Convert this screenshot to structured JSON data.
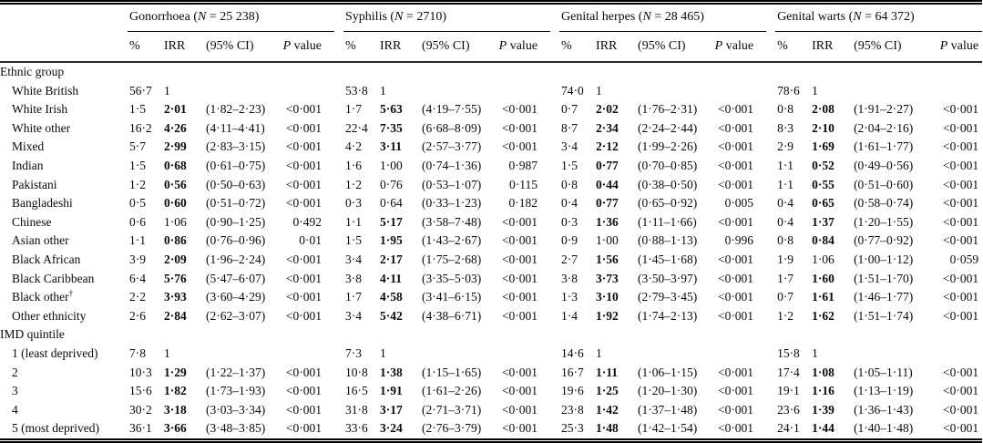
{
  "table": {
    "n_symbol": "N",
    "groups": [
      {
        "name": "Gonorrhoea",
        "n": "25 238"
      },
      {
        "name": "Syphilis",
        "n": "2710"
      },
      {
        "name": "Genital herpes",
        "n": "28 465"
      },
      {
        "name": "Genital warts",
        "n": "64 372"
      }
    ],
    "subheaders": {
      "pct": "%",
      "irr": "IRR",
      "ci": "(95% CI)",
      "p_italic": "P",
      "p_rest": "value"
    },
    "sections": [
      {
        "header": "Ethnic group",
        "rows": [
          {
            "label": "White British",
            "cells": [
              {
                "pct": "56·7",
                "irr": "1",
                "bold": false,
                "ci": "",
                "p": ""
              },
              {
                "pct": "53·8",
                "irr": "1",
                "bold": false,
                "ci": "",
                "p": ""
              },
              {
                "pct": "74·0",
                "irr": "1",
                "bold": false,
                "ci": "",
                "p": ""
              },
              {
                "pct": "78·6",
                "irr": "1",
                "bold": false,
                "ci": "",
                "p": ""
              }
            ]
          },
          {
            "label": "White Irish",
            "cells": [
              {
                "pct": "1·5",
                "irr": "2·01",
                "bold": true,
                "ci": "(1·82–2·23)",
                "p": "<0·001"
              },
              {
                "pct": "1·7",
                "irr": "5·63",
                "bold": true,
                "ci": "(4·19–7·55)",
                "p": "<0·001"
              },
              {
                "pct": "0·7",
                "irr": "2·02",
                "bold": true,
                "ci": "(1·76–2·31)",
                "p": "<0·001"
              },
              {
                "pct": "0·8",
                "irr": "2·08",
                "bold": true,
                "ci": "(1·91–2·27)",
                "p": "<0·001"
              }
            ]
          },
          {
            "label": "White other",
            "cells": [
              {
                "pct": "16·2",
                "irr": "4·26",
                "bold": true,
                "ci": "(4·11–4·41)",
                "p": "<0·001"
              },
              {
                "pct": "22·4",
                "irr": "7·35",
                "bold": true,
                "ci": "(6·68–8·09)",
                "p": "<0·001"
              },
              {
                "pct": "8·7",
                "irr": "2·34",
                "bold": true,
                "ci": "(2·24–2·44)",
                "p": "<0·001"
              },
              {
                "pct": "8·3",
                "irr": "2·10",
                "bold": true,
                "ci": "(2·04–2·16)",
                "p": "<0·001"
              }
            ]
          },
          {
            "label": "Mixed",
            "cells": [
              {
                "pct": "5·7",
                "irr": "2·99",
                "bold": true,
                "ci": "(2·83–3·15)",
                "p": "<0·001"
              },
              {
                "pct": "4·2",
                "irr": "3·11",
                "bold": true,
                "ci": "(2·57–3·77)",
                "p": "<0·001"
              },
              {
                "pct": "3·4",
                "irr": "2·12",
                "bold": true,
                "ci": "(1·99–2·26)",
                "p": "<0·001"
              },
              {
                "pct": "2·9",
                "irr": "1·69",
                "bold": true,
                "ci": "(1·61–1·77)",
                "p": "<0·001"
              }
            ]
          },
          {
            "label": "Indian",
            "cells": [
              {
                "pct": "1·5",
                "irr": "0·68",
                "bold": true,
                "ci": "(0·61–0·75)",
                "p": "<0·001"
              },
              {
                "pct": "1·6",
                "irr": "1·00",
                "bold": false,
                "ci": "(0·74–1·36)",
                "p": "0·987"
              },
              {
                "pct": "1·5",
                "irr": "0·77",
                "bold": true,
                "ci": "(0·70–0·85)",
                "p": "<0·001"
              },
              {
                "pct": "1·1",
                "irr": "0·52",
                "bold": true,
                "ci": "(0·49–0·56)",
                "p": "<0·001"
              }
            ]
          },
          {
            "label": "Pakistani",
            "cells": [
              {
                "pct": "1·2",
                "irr": "0·56",
                "bold": true,
                "ci": "(0·50–0·63)",
                "p": "<0·001"
              },
              {
                "pct": "1·2",
                "irr": "0·76",
                "bold": false,
                "ci": "(0·53–1·07)",
                "p": "0·115"
              },
              {
                "pct": "0·8",
                "irr": "0·44",
                "bold": true,
                "ci": "(0·38–0·50)",
                "p": "<0·001"
              },
              {
                "pct": "1·1",
                "irr": "0·55",
                "bold": true,
                "ci": "(0·51–0·60)",
                "p": "<0·001"
              }
            ]
          },
          {
            "label": "Bangladeshi",
            "cells": [
              {
                "pct": "0·5",
                "irr": "0·60",
                "bold": true,
                "ci": "(0·51–0·72)",
                "p": "<0·001"
              },
              {
                "pct": "0·3",
                "irr": "0·64",
                "bold": false,
                "ci": "(0·33–1·23)",
                "p": "0·182"
              },
              {
                "pct": "0·4",
                "irr": "0·77",
                "bold": true,
                "ci": "(0·65–0·92)",
                "p": "0·005"
              },
              {
                "pct": "0·4",
                "irr": "0·65",
                "bold": true,
                "ci": "(0·58–0·74)",
                "p": "<0·001"
              }
            ]
          },
          {
            "label": "Chinese",
            "cells": [
              {
                "pct": "0·6",
                "irr": "1·06",
                "bold": false,
                "ci": "(0·90–1·25)",
                "p": "0·492"
              },
              {
                "pct": "1·1",
                "irr": "5·17",
                "bold": true,
                "ci": "(3·58–7·48)",
                "p": "<0·001"
              },
              {
                "pct": "0·3",
                "irr": "1·36",
                "bold": true,
                "ci": "(1·11–1·66)",
                "p": "<0·001"
              },
              {
                "pct": "0·4",
                "irr": "1·37",
                "bold": true,
                "ci": "(1·20–1·55)",
                "p": "<0·001"
              }
            ]
          },
          {
            "label": "Asian other",
            "cells": [
              {
                "pct": "1·1",
                "irr": "0·86",
                "bold": true,
                "ci": "(0·76–0·96)",
                "p": "0·01"
              },
              {
                "pct": "1·5",
                "irr": "1·95",
                "bold": true,
                "ci": "(1·43–2·67)",
                "p": "<0·001"
              },
              {
                "pct": "0·9",
                "irr": "1·00",
                "bold": false,
                "ci": "(0·88–1·13)",
                "p": "0·996"
              },
              {
                "pct": "0·8",
                "irr": "0·84",
                "bold": true,
                "ci": "(0·77–0·92)",
                "p": "<0·001"
              }
            ]
          },
          {
            "label": "Black African",
            "cells": [
              {
                "pct": "3·9",
                "irr": "2·09",
                "bold": true,
                "ci": "(1·96–2·24)",
                "p": "<0·001"
              },
              {
                "pct": "3·4",
                "irr": "2·17",
                "bold": true,
                "ci": "(1·75–2·68)",
                "p": "<0·001"
              },
              {
                "pct": "2·7",
                "irr": "1·56",
                "bold": true,
                "ci": "(1·45–1·68)",
                "p": "<0·001"
              },
              {
                "pct": "1·9",
                "irr": "1·06",
                "bold": false,
                "ci": "(1·00–1·12)",
                "p": "0·059"
              }
            ]
          },
          {
            "label": "Black Caribbean",
            "cells": [
              {
                "pct": "6·4",
                "irr": "5·76",
                "bold": true,
                "ci": "(5·47–6·07)",
                "p": "<0·001"
              },
              {
                "pct": "3·8",
                "irr": "4·11",
                "bold": true,
                "ci": "(3·35–5·03)",
                "p": "<0·001"
              },
              {
                "pct": "3·8",
                "irr": "3·73",
                "bold": true,
                "ci": "(3·50–3·97)",
                "p": "<0·001"
              },
              {
                "pct": "1·7",
                "irr": "1·60",
                "bold": true,
                "ci": "(1·51–1·70)",
                "p": "<0·001"
              }
            ]
          },
          {
            "label": "Black other",
            "sup": "†",
            "cells": [
              {
                "pct": "2·2",
                "irr": "3·93",
                "bold": true,
                "ci": "(3·60–4·29)",
                "p": "<0·001"
              },
              {
                "pct": "1·7",
                "irr": "4·58",
                "bold": true,
                "ci": "(3·41–6·15)",
                "p": "<0·001"
              },
              {
                "pct": "1·3",
                "irr": "3·10",
                "bold": true,
                "ci": "(2·79–3·45)",
                "p": "<0·001"
              },
              {
                "pct": "0·7",
                "irr": "1·61",
                "bold": true,
                "ci": "(1·46–1·77)",
                "p": "<0·001"
              }
            ]
          },
          {
            "label": "Other ethnicity",
            "cells": [
              {
                "pct": "2·6",
                "irr": "2·84",
                "bold": true,
                "ci": "(2·62–3·07)",
                "p": "<0·001"
              },
              {
                "pct": "3·4",
                "irr": "5·42",
                "bold": true,
                "ci": "(4·38–6·71)",
                "p": "<0·001"
              },
              {
                "pct": "1·4",
                "irr": "1·92",
                "bold": true,
                "ci": "(1·74–2·13)",
                "p": "<0·001"
              },
              {
                "pct": "1·2",
                "irr": "1·62",
                "bold": true,
                "ci": "(1·51–1·74)",
                "p": "<0·001"
              }
            ]
          }
        ]
      },
      {
        "header": "IMD quintile",
        "rows": [
          {
            "label": "1 (least deprived)",
            "cells": [
              {
                "pct": "7·8",
                "irr": "1",
                "bold": false,
                "ci": "",
                "p": ""
              },
              {
                "pct": "7·3",
                "irr": "1",
                "bold": false,
                "ci": "",
                "p": ""
              },
              {
                "pct": "14·6",
                "irr": "1",
                "bold": false,
                "ci": "",
                "p": ""
              },
              {
                "pct": "15·8",
                "irr": "1",
                "bold": false,
                "ci": "",
                "p": ""
              }
            ]
          },
          {
            "label": "2",
            "cells": [
              {
                "pct": "10·3",
                "irr": "1·29",
                "bold": true,
                "ci": "(1·22–1·37)",
                "p": "<0·001"
              },
              {
                "pct": "10·8",
                "irr": "1·38",
                "bold": true,
                "ci": "(1·15–1·65)",
                "p": "<0·001"
              },
              {
                "pct": "16·7",
                "irr": "1·11",
                "bold": true,
                "ci": "(1·06–1·15)",
                "p": "<0·001"
              },
              {
                "pct": "17·4",
                "irr": "1·08",
                "bold": true,
                "ci": "(1·05–1·11)",
                "p": "<0·001"
              }
            ]
          },
          {
            "label": "3",
            "cells": [
              {
                "pct": "15·6",
                "irr": "1·82",
                "bold": true,
                "ci": "(1·73–1·93)",
                "p": "<0·001"
              },
              {
                "pct": "16·5",
                "irr": "1·91",
                "bold": true,
                "ci": "(1·61–2·26)",
                "p": "<0·001"
              },
              {
                "pct": "19·6",
                "irr": "1·25",
                "bold": true,
                "ci": "(1·20–1·30)",
                "p": "<0·001"
              },
              {
                "pct": "19·1",
                "irr": "1·16",
                "bold": true,
                "ci": "(1·13–1·19)",
                "p": "<0·001"
              }
            ]
          },
          {
            "label": "4",
            "cells": [
              {
                "pct": "30·2",
                "irr": "3·18",
                "bold": true,
                "ci": "(3·03–3·34)",
                "p": "<0·001"
              },
              {
                "pct": "31·8",
                "irr": "3·17",
                "bold": true,
                "ci": "(2·71–3·71)",
                "p": "<0·001"
              },
              {
                "pct": "23·8",
                "irr": "1·42",
                "bold": true,
                "ci": "(1·37–1·48)",
                "p": "<0·001"
              },
              {
                "pct": "23·6",
                "irr": "1·39",
                "bold": true,
                "ci": "(1·36–1·43)",
                "p": "<0·001"
              }
            ]
          },
          {
            "label": "5 (most deprived)",
            "cells": [
              {
                "pct": "36·1",
                "irr": "3·66",
                "bold": true,
                "ci": "(3·48–3·85)",
                "p": "<0·001"
              },
              {
                "pct": "33·6",
                "irr": "3·24",
                "bold": true,
                "ci": "(2·76–3·79)",
                "p": "<0·001"
              },
              {
                "pct": "25·3",
                "irr": "1·48",
                "bold": true,
                "ci": "(1·42–1·54)",
                "p": "<0·001"
              },
              {
                "pct": "24·1",
                "irr": "1·44",
                "bold": true,
                "ci": "(1·40–1·48)",
                "p": "<0·001"
              }
            ]
          }
        ]
      }
    ]
  }
}
